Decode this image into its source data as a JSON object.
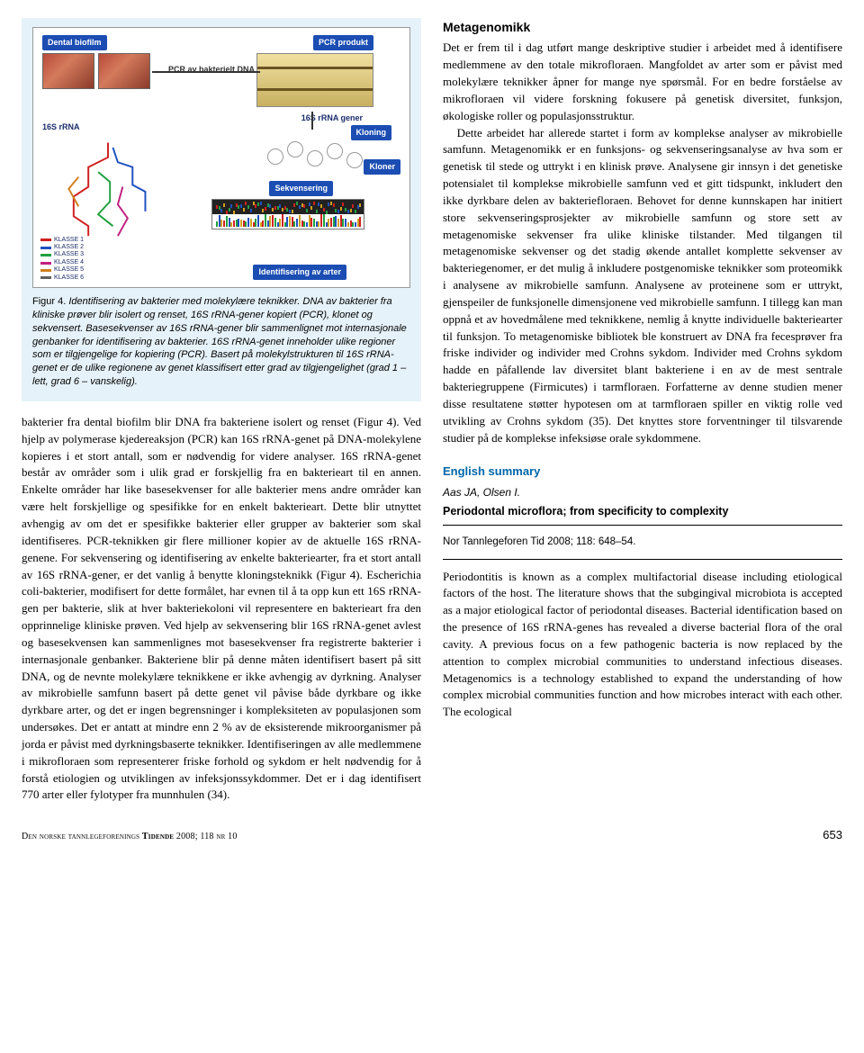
{
  "figure": {
    "labels": {
      "dental_biofilm": "Dental biofilm",
      "pcr_dna": "PCR av bakterielt DNA",
      "pcr_produkt": "PCR produkt",
      "rrna_gener": "16S rRNA gener",
      "rrna": "16S rRNA",
      "kloning": "Kloning",
      "kloner": "Kloner",
      "sekvensering": "Sekvensering",
      "identifisering": "Identifisering av arter"
    },
    "legend": [
      {
        "label": "KLASSE 1",
        "color": "#d02020"
      },
      {
        "label": "KLASSE 2",
        "color": "#2050c0"
      },
      {
        "label": "KLASSE 3",
        "color": "#20a040"
      },
      {
        "label": "KLASSE 4",
        "color": "#c02080"
      },
      {
        "label": "KLASSE 5",
        "color": "#d08020"
      },
      {
        "label": "KLASSE 6",
        "color": "#606060"
      }
    ],
    "caption_lead": "Figur 4.",
    "caption": "Identifisering av bakterier med molekylære teknikker. DNA av bakterier fra kliniske prøver blir isolert og renset, 16S rRNA-gener kopiert (PCR), klonet og sekvensert. Basesekvenser av 16S rRNA-gener blir sammenlignet mot internasjonale genbanker for identifisering av bakterier. 16S rRNA-genet inneholder ulike regioner som er tilgjengelige for kopiering (PCR). Basert på molekylstrukturen til 16S rRNA-genet er de ulike regionene av genet klassifisert etter grad av tilgjengelighet (grad 1 – lett, grad 6 – vanskelig)."
  },
  "left_col": {
    "body": "bakterier fra dental biofilm blir DNA fra bakteriene isolert og renset (Figur 4). Ved hjelp av polymerase kjedereaksjon (PCR) kan 16S rRNA-genet på DNA-molekylene kopieres i et stort antall, som er nødvendig for videre analyser. 16S rRNA-genet består av områder som i ulik grad er forskjellig fra en bakterieart til en annen. Enkelte områder har like basesekvenser for alle bakterier mens andre områder kan være helt forskjellige og spesifikke for en enkelt bakterieart. Dette blir utnyttet avhengig av om det er spesifikke bakterier eller grupper av bakterier som skal identifiseres. PCR-teknikken gir flere millioner kopier av de aktuelle 16S rRNA-genene. For sekvensering og identifisering av enkelte bakteriearter, fra et stort antall av 16S rRNA-gener, er det vanlig å benytte kloningsteknikk (Figur 4). Escherichia coli-bakterier, modifisert for dette formålet, har evnen til å ta opp kun ett 16S rRNA-gen per bakterie, slik at hver bakteriekoloni vil representere en bakterieart fra den opprinnelige kliniske prøven. Ved hjelp av sekvensering blir 16S rRNA-genet avlest og basesekvensen kan sammenlignes mot basesekvenser fra registrerte bakterier i internasjonale genbanker. Bakteriene blir på denne måten identifisert basert på sitt DNA, og de nevnte molekylære teknikkene er ikke avhengig av dyrkning. Analyser av mikrobielle samfunn basert på dette genet vil påvise både dyrkbare og ikke dyrkbare arter, og det er ingen begrensninger i kompleksiteten av populasjonen som undersøkes. Det er antatt at mindre enn 2 % av de eksisterende mikroorganismer på jorda er påvist med dyrkningsbaserte teknikker. Identifiseringen av alle medlemmene i mikrofloraen som representerer friske forhold og sykdom er helt nødvendig for å forstå etiologien og utviklingen av infeksjonssykdommer. Det er i dag identifisert 770 arter eller fylotyper fra munnhulen (34)."
  },
  "right_col": {
    "heading": "Metagenomikk",
    "p1": "Det er frem til i dag utført mange deskriptive studier i arbeidet med å identifisere medlemmene av den totale mikrofloraen. Mangfoldet av arter som er påvist med molekylære teknikker åpner for mange nye spørsmål. For en bedre forståelse av mikrofloraen vil videre forskning fokusere på genetisk diversitet, funksjon, økologiske roller og populasjonsstruktur.",
    "p2": "Dette arbeidet har allerede startet i form av komplekse analyser av mikrobielle samfunn. Metagenomikk er en funksjons- og sekvenseringsanalyse av hva som er genetisk til stede og uttrykt i en klinisk prøve. Analysene gir innsyn i det genetiske potensialet til komplekse mikrobielle samfunn ved et gitt tidspunkt, inkludert den ikke dyrkbare delen av bakteriefloraen. Behovet for denne kunnskapen har initiert store sekvenseringsprosjekter av mikrobielle samfunn og store sett av metagenomiske sekvenser fra ulike kliniske tilstander. Med tilgangen til metagenomiske sekvenser og det stadig økende antallet komplette sekvenser av bakteriegenomer, er det mulig å inkludere postgenomiske teknikker som proteomikk i analysene av mikrobielle samfunn. Analysene av proteinene som er uttrykt, gjenspeiler de funksjonelle dimensjonene ved mikrobielle samfunn. I tillegg kan man oppnå et av hovedmålene med teknikkene, nemlig å knytte individuelle bakteriearter til funksjon. To metagenomiske bibliotek ble konstruert av DNA fra fecesprøver fra friske individer og individer med Crohns sykdom. Individer med Crohns sykdom hadde en påfallende lav diversitet blant bakteriene i en av de mest sentrale bakteriegruppene (Firmicutes) i tarmfloraen. Forfatterne av denne studien mener disse resultatene støtter hypotesen om at tarmfloraen spiller en viktig rolle ved utvikling av Crohns sykdom (35). Det knyttes store forventninger til tilsvarende studier på de komplekse infeksiøse orale sykdommene."
  },
  "english": {
    "heading": "English summary",
    "byline": "Aas JA, Olsen I.",
    "title": "Periodontal microflora; from specificity to complexity",
    "citation": "Nor Tannlegeforen Tid 2008; 118: 648–54.",
    "body": "Periodontitis is known as a complex multifactorial disease including etiological factors of the host. The literature shows that the subgingival microbiota is accepted as a major etiological factor of periodontal diseases. Bacterial identification based on the presence of 16S rRNA-genes has revealed a diverse bacterial flora of the oral cavity. A previous focus on a few pathogenic bacteria is now replaced by the attention to complex microbial communities to understand infectious diseases. Metagenomics is a technology established to expand the understanding of how complex microbial communities function and how microbes interact with each other. The ecological"
  },
  "footer": {
    "left_a": "Den norske tannlegeforenings ",
    "left_b": "Tidende ",
    "left_c": "2008; 118 ",
    "left_d": "nr",
    "left_e": " 10",
    "page": "653"
  },
  "colors": {
    "figure_bg": "#e6f2f9",
    "blue_label": "#1b4db3",
    "link_blue": "#0066aa"
  }
}
